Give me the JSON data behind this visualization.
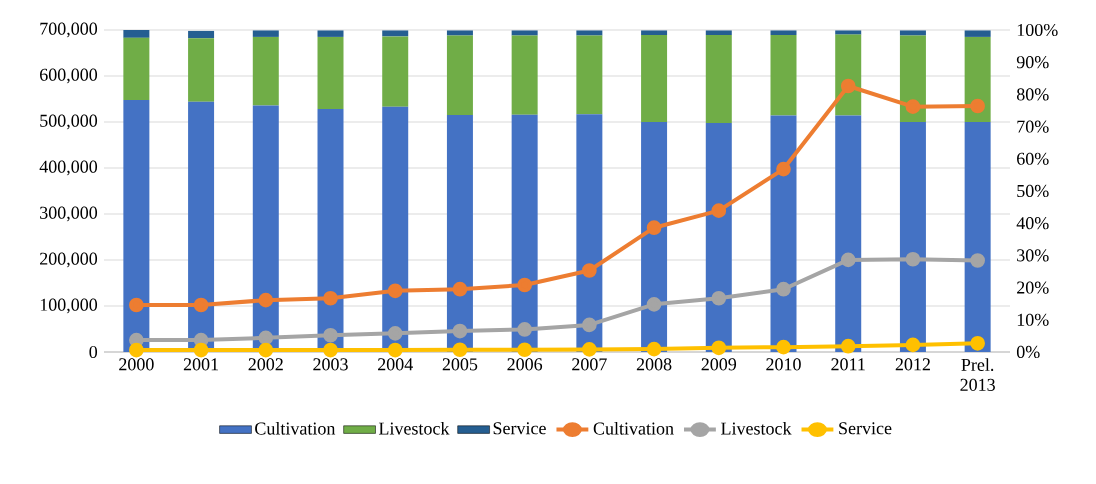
{
  "chart_data": {
    "type": "bar",
    "stacked": true,
    "categories": [
      "2000",
      "2001",
      "2002",
      "2003",
      "2004",
      "2005",
      "2006",
      "2007",
      "2008",
      "2009",
      "2010",
      "2011",
      "2012",
      "Prel. 2013"
    ],
    "series": [
      {
        "name": "Cultivation",
        "color": "#4472c4",
        "values": [
          548000,
          544000,
          536000,
          528000,
          533000,
          515000,
          516000,
          517000,
          500000,
          498000,
          514000,
          514000,
          500000,
          500000
        ]
      },
      {
        "name": "Livestock",
        "color": "#70ad47",
        "values": [
          135000,
          138000,
          149000,
          157000,
          153000,
          173000,
          172000,
          171000,
          189000,
          191000,
          175000,
          176000,
          188000,
          185000
        ]
      },
      {
        "name": "Service",
        "color": "#255e91",
        "values": [
          17000,
          16000,
          14000,
          14000,
          13000,
          11000,
          11000,
          11000,
          10000,
          10000,
          10000,
          9000,
          11000,
          14000
        ]
      },
      {
        "name": "Cultivation",
        "type": "line",
        "axis": "y2",
        "marker": "circle",
        "color": "#ed7d31",
        "values": [
          14.6,
          14.6,
          16.1,
          16.7,
          19.0,
          19.5,
          20.8,
          25.3,
          38.6,
          43.9,
          56.8,
          82.6,
          76.2,
          76.4
        ]
      },
      {
        "name": "Livestock",
        "type": "line",
        "axis": "y2",
        "marker": "circle",
        "color": "#a5a5a5",
        "values": [
          3.7,
          3.7,
          4.4,
          5.2,
          5.8,
          6.5,
          7.0,
          8.4,
          14.8,
          16.7,
          19.5,
          28.6,
          28.8,
          28.4
        ]
      },
      {
        "name": "Service",
        "type": "line",
        "axis": "y2",
        "marker": "circle",
        "color": "#ffc000",
        "values": [
          0.6,
          0.6,
          0.6,
          0.6,
          0.6,
          0.7,
          0.7,
          0.8,
          0.9,
          1.3,
          1.5,
          1.8,
          2.2,
          2.7
        ]
      }
    ],
    "ylim": [
      0,
      700000
    ],
    "yticks": [
      {
        "value": 0,
        "label": "0"
      },
      {
        "value": 100000,
        "label": "100,000"
      },
      {
        "value": 200000,
        "label": "200,000"
      },
      {
        "value": 300000,
        "label": "300,000"
      },
      {
        "value": 400000,
        "label": "400,000"
      },
      {
        "value": 500000,
        "label": "500,000"
      },
      {
        "value": 600000,
        "label": "600,000"
      },
      {
        "value": 700000,
        "label": "700,000"
      }
    ],
    "y2lim": [
      0,
      100
    ],
    "y2ticks": [
      {
        "value": 0,
        "label": "0%"
      },
      {
        "value": 10,
        "label": "10%"
      },
      {
        "value": 20,
        "label": "20%"
      },
      {
        "value": 30,
        "label": "30%"
      },
      {
        "value": 40,
        "label": "40%"
      },
      {
        "value": 50,
        "label": "50%"
      },
      {
        "value": 60,
        "label": "60%"
      },
      {
        "value": 70,
        "label": "70%"
      },
      {
        "value": 80,
        "label": "80%"
      },
      {
        "value": 90,
        "label": "90%"
      },
      {
        "value": 100,
        "label": "100%"
      }
    ],
    "grid": "y",
    "legend": "bottom"
  }
}
